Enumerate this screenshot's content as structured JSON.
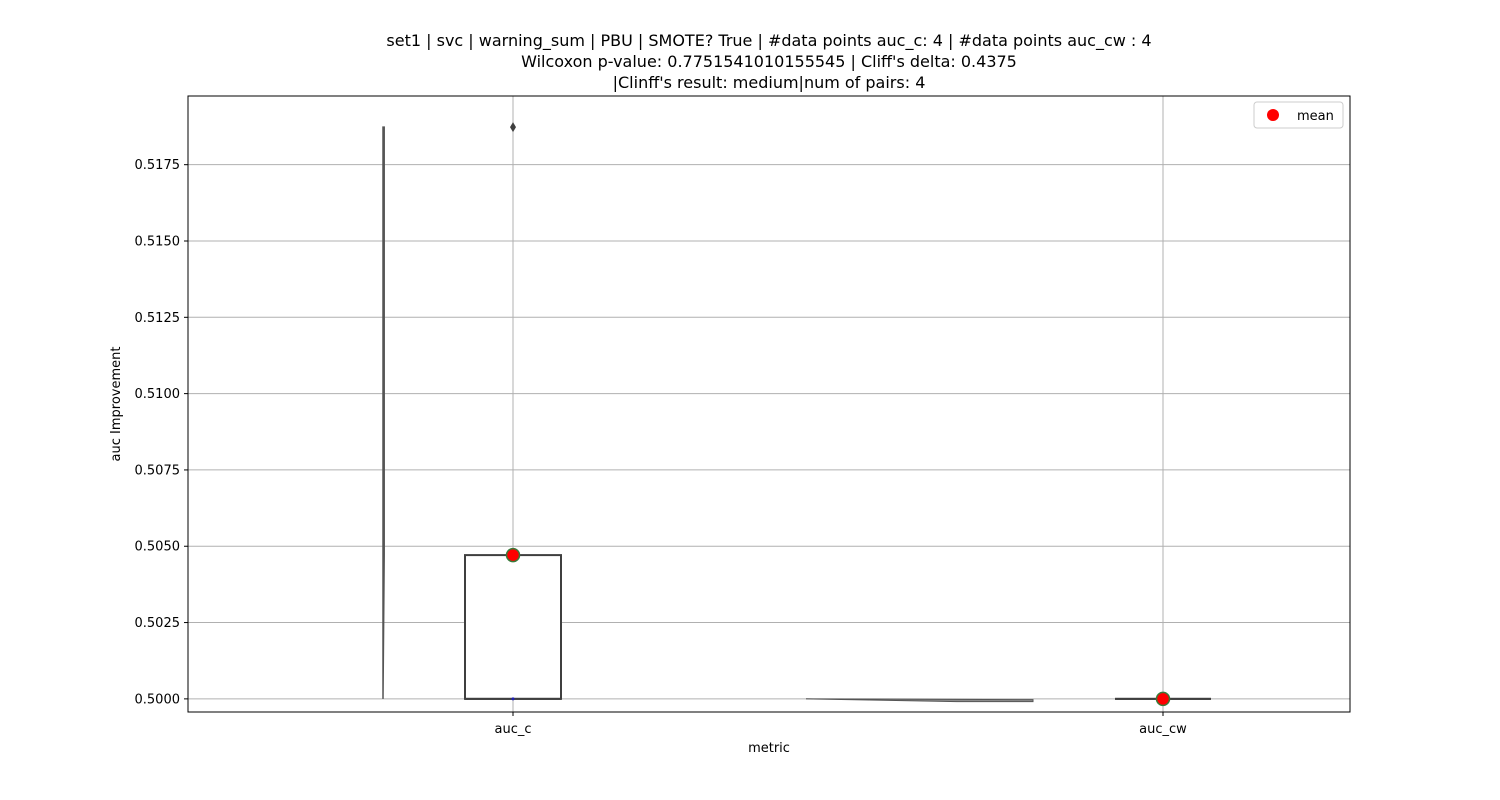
{
  "chart_data": {
    "type": "box",
    "title_lines": [
      "set1 | svc | warning_sum | PBU | SMOTE? True | #data points auc_c: 4 | #data points auc_cw : 4",
      "Wilcoxon p-value: 0.7751541010155545 | Cliff's delta: 0.4375",
      "|Clinff's result: medium|num of pairs: 4"
    ],
    "xlabel": "metric",
    "ylabel": "auc Improvement",
    "categories": [
      "auc_c",
      "auc_cw"
    ],
    "ylim": [
      0.49957,
      0.51975
    ],
    "yticks": [
      0.5,
      0.5025,
      0.505,
      0.5075,
      0.51,
      0.5125,
      0.515,
      0.5175
    ],
    "ytick_labels": [
      "0.5000",
      "0.5025",
      "0.5050",
      "0.5075",
      "0.5100",
      "0.5125",
      "0.5150",
      "0.5175"
    ],
    "grid": true,
    "legend": {
      "position": "upper-right",
      "label": "mean"
    },
    "boxes": [
      {
        "category": "auc_c",
        "q1": 0.5,
        "median": 0.5,
        "q3": 0.50471,
        "whisker_low": 0.5,
        "whisker_high": 0.50471,
        "outliers": [
          0.51873
        ],
        "mean": 0.50471
      },
      {
        "category": "auc_cw",
        "q1": 0.5,
        "median": 0.5,
        "q3": 0.5,
        "whisker_low": 0.5,
        "whisker_high": 0.5,
        "outliers": [],
        "mean": 0.5
      }
    ],
    "violins": [
      {
        "category": "auc_c",
        "values": [
          0.5,
          0.50471,
          0.51873
        ]
      },
      {
        "category": "auc_cw",
        "values": [
          0.49991,
          0.5,
          0.5
        ]
      }
    ],
    "colors": {
      "mean_fill": "#ff0000",
      "mean_edge": "#3a7a3a",
      "box_edge": "#3f3f3f",
      "grid": "#b0b0b0",
      "violin": "#555555",
      "median_marker": "#1f1fb4"
    }
  }
}
